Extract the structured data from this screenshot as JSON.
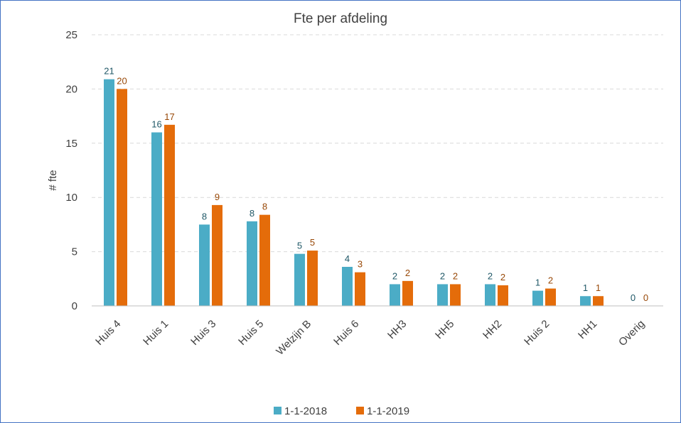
{
  "chart_data": {
    "type": "bar",
    "title": "Fte per afdeling",
    "ylabel": "# fte",
    "xlabel": "",
    "ylim": [
      0,
      25
    ],
    "yticks": [
      0,
      5,
      10,
      15,
      20,
      25
    ],
    "grid": true,
    "legend_position": "bottom",
    "categories": [
      "Huis 4",
      "Huis 1",
      "Huis 3",
      "Huis 5",
      "Welzijn B",
      "Huis 6",
      "HH3",
      "HH5",
      "HH2",
      "Huis 2",
      "HH1",
      "Overig"
    ],
    "series": [
      {
        "name": "1-1-2018",
        "color": "#4bacc6",
        "label_color": "#215968",
        "values": [
          20.9,
          16.0,
          7.5,
          7.8,
          4.8,
          3.6,
          2.0,
          2.0,
          2.0,
          1.4,
          0.9,
          0.0
        ],
        "labels": [
          "21",
          "16",
          "8",
          "8",
          "5",
          "4",
          "2",
          "2",
          "2",
          "1",
          "1",
          "0"
        ]
      },
      {
        "name": "1-1-2019",
        "color": "#e46c0a",
        "label_color": "#984807",
        "values": [
          20.0,
          16.7,
          9.3,
          8.4,
          5.1,
          3.1,
          2.3,
          2.0,
          1.9,
          1.6,
          0.9,
          0.0
        ],
        "labels": [
          "20",
          "17",
          "9",
          "8",
          "5",
          "3",
          "2",
          "2",
          "2",
          "2",
          "1",
          "0"
        ]
      }
    ]
  }
}
